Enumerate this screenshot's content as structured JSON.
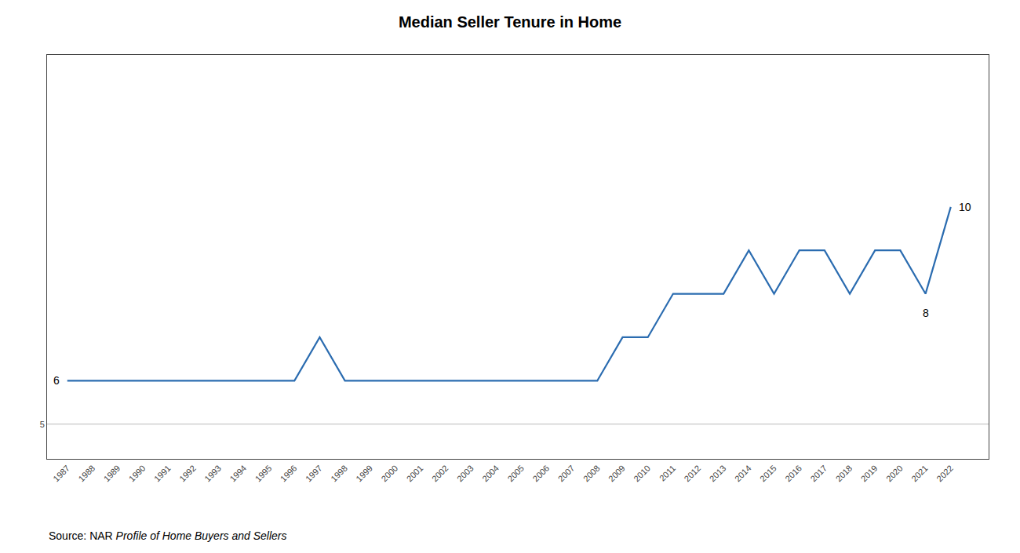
{
  "chart_data": {
    "type": "line",
    "title": "Median Seller Tenure in Home",
    "x": [
      1987,
      1988,
      1989,
      1990,
      1991,
      1992,
      1993,
      1994,
      1995,
      1996,
      1997,
      1998,
      1999,
      2000,
      2001,
      2002,
      2003,
      2004,
      2005,
      2006,
      2007,
      2008,
      2009,
      2010,
      2011,
      2012,
      2013,
      2014,
      2015,
      2016,
      2017,
      2018,
      2019,
      2020,
      2021,
      2022
    ],
    "values": [
      6,
      6,
      6,
      6,
      6,
      6,
      6,
      6,
      6,
      6,
      7,
      6,
      6,
      6,
      6,
      6,
      6,
      6,
      6,
      6,
      6,
      6,
      7,
      7,
      8,
      8,
      8,
      9,
      8,
      9,
      9,
      8,
      9,
      9,
      8,
      10
    ],
    "color": "#2B6CB0",
    "xlim": [
      1986.2,
      2023.5
    ],
    "xticks": [
      1987,
      1988,
      1989,
      1990,
      1991,
      1992,
      1993,
      1994,
      1995,
      1996,
      1997,
      1998,
      1999,
      2000,
      2001,
      2002,
      2003,
      2004,
      2005,
      2006,
      2007,
      2008,
      2009,
      2010,
      2011,
      2012,
      2013,
      2014,
      2015,
      2016,
      2017,
      2018,
      2019,
      2020,
      2021,
      2022
    ],
    "ylim": [
      4.2,
      13.5
    ],
    "yticks": [
      5
    ],
    "hline": 5,
    "grid": false,
    "annotations": [
      {
        "text": "6",
        "x": 1987,
        "y": 6,
        "position": "left"
      },
      {
        "text": "8",
        "x": 2021,
        "y": 8,
        "position": "below"
      },
      {
        "text": "10",
        "x": 2022,
        "y": 10,
        "position": "right"
      }
    ],
    "source": [
      "Source: NAR ",
      "Profile of Home Buyers and Sellers"
    ]
  }
}
